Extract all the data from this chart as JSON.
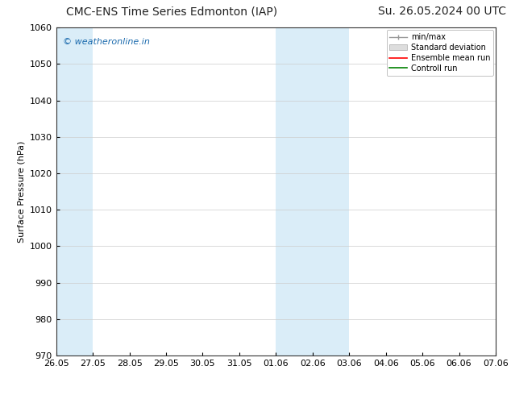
{
  "title_left": "CMC-ENS Time Series Edmonton (IAP)",
  "title_right": "Su. 26.05.2024 00 UTC",
  "ylabel": "Surface Pressure (hPa)",
  "ylim": [
    970,
    1060
  ],
  "yticks": [
    970,
    980,
    990,
    1000,
    1010,
    1020,
    1030,
    1040,
    1050,
    1060
  ],
  "xtick_labels": [
    "26.05",
    "27.05",
    "28.05",
    "29.05",
    "30.05",
    "31.05",
    "01.06",
    "02.06",
    "03.06",
    "04.06",
    "05.06",
    "06.06",
    "07.06"
  ],
  "xtick_positions": [
    0,
    1,
    2,
    3,
    4,
    5,
    6,
    7,
    8,
    9,
    10,
    11,
    12
  ],
  "shaded_bands": [
    {
      "x_start": 0,
      "x_end": 1,
      "color": "#daedf8"
    },
    {
      "x_start": 6,
      "x_end": 7,
      "color": "#daedf8"
    },
    {
      "x_start": 7,
      "x_end": 8,
      "color": "#daedf8"
    }
  ],
  "watermark_text": "© weatheronline.in",
  "watermark_color": "#1a6aad",
  "background_color": "#ffffff",
  "plot_bg_color": "#ffffff",
  "legend_labels": [
    "min/max",
    "Standard deviation",
    "Ensemble mean run",
    "Controll run"
  ],
  "legend_colors": [
    "#999999",
    "#cccccc",
    "red",
    "green"
  ],
  "title_fontsize": 10,
  "ylabel_fontsize": 8,
  "tick_fontsize": 8,
  "watermark_fontsize": 8,
  "legend_fontsize": 7
}
